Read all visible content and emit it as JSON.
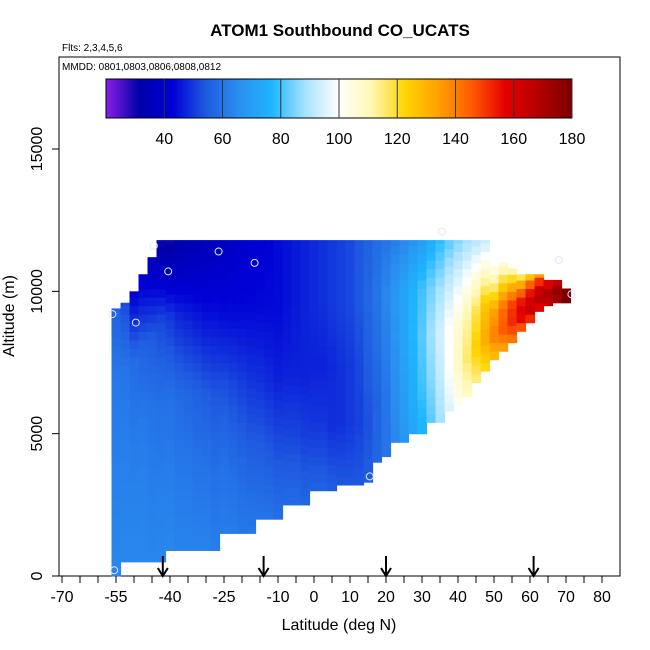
{
  "chart_data": {
    "type": "heatmap",
    "title": "ATOM1 Southbound CO_UCATS",
    "flights_note": "Flts: 2,3,4,5,6",
    "dates_note": "MMDD: 0801,0803,0806,0808,0812",
    "xlabel": "Latitude (deg N)",
    "ylabel": "Altitude (m)",
    "xlim": [
      -70,
      80
    ],
    "ylim": [
      0,
      17000
    ],
    "x_ticks": [
      -70,
      -55,
      -40,
      -25,
      -10,
      0,
      10,
      20,
      30,
      40,
      50,
      60,
      70,
      80
    ],
    "x_tick_labels": [
      "-70",
      "-55",
      "-40",
      "-25",
      "-10",
      "0",
      "10",
      "20",
      "30",
      "40",
      "50",
      "60",
      "70",
      "80"
    ],
    "y_ticks": [
      0,
      5000,
      10000,
      15000
    ],
    "y_tick_labels": [
      "0",
      "5000",
      "10000",
      "15000"
    ],
    "colorbar": {
      "range": [
        20,
        180
      ],
      "ticks": [
        40,
        60,
        80,
        100,
        120,
        140,
        160,
        180
      ],
      "tick_labels": [
        "40",
        "60",
        "80",
        "100",
        "120",
        "140",
        "160",
        "180"
      ],
      "colors": [
        "#8a1fe8",
        "#0000a8",
        "#0000d6",
        "#1f5ae0",
        "#2a8ff0",
        "#1fb6ff",
        "#a9e3ff",
        "#ffffff",
        "#fff7b0",
        "#ffd400",
        "#ffa000",
        "#ff5a00",
        "#e40000",
        "#b40000",
        "#7a0000"
      ]
    },
    "cell_width_deg": 2.5,
    "columns": [
      {
        "x": -55.0,
        "bottom": 0,
        "top": 9400,
        "v": [
          64,
          63,
          62,
          61,
          56
        ]
      },
      {
        "x": -52.5,
        "bottom": 500,
        "top": 9600,
        "v": [
          64,
          63,
          62,
          60,
          52
        ]
      },
      {
        "x": -50.0,
        "bottom": 500,
        "top": 10000,
        "v": [
          64,
          63,
          61,
          58,
          42
        ]
      },
      {
        "x": -47.5,
        "bottom": 500,
        "top": 10600,
        "v": [
          64,
          63,
          61,
          56,
          40
        ]
      },
      {
        "x": -45.0,
        "bottom": 500,
        "top": 11200,
        "v": [
          64,
          62,
          60,
          54,
          36
        ]
      },
      {
        "x": -42.5,
        "bottom": 500,
        "top": 11800,
        "v": [
          64,
          62,
          59,
          52,
          30
        ]
      },
      {
        "x": -40.0,
        "bottom": 900,
        "top": 11800,
        "v": [
          64,
          62,
          59,
          50,
          30
        ]
      },
      {
        "x": -37.5,
        "bottom": 900,
        "top": 11800,
        "v": [
          63,
          61,
          58,
          48,
          32
        ]
      },
      {
        "x": -35.0,
        "bottom": 900,
        "top": 11800,
        "v": [
          63,
          61,
          57,
          47,
          34
        ]
      },
      {
        "x": -32.5,
        "bottom": 900,
        "top": 11800,
        "v": [
          63,
          60,
          56,
          46,
          35
        ]
      },
      {
        "x": -30.0,
        "bottom": 900,
        "top": 11800,
        "v": [
          63,
          60,
          55,
          45,
          36
        ]
      },
      {
        "x": -27.5,
        "bottom": 900,
        "top": 11800,
        "v": [
          62,
          59,
          54,
          45,
          37
        ]
      },
      {
        "x": -25.0,
        "bottom": 1500,
        "top": 11800,
        "v": [
          62,
          59,
          53,
          44,
          38
        ]
      },
      {
        "x": -22.5,
        "bottom": 1500,
        "top": 11800,
        "v": [
          62,
          58,
          52,
          44,
          39
        ]
      },
      {
        "x": -20.0,
        "bottom": 1500,
        "top": 11800,
        "v": [
          61,
          57,
          51,
          44,
          40
        ]
      },
      {
        "x": -17.5,
        "bottom": 1500,
        "top": 11800,
        "v": [
          61,
          56,
          50,
          44,
          41
        ]
      },
      {
        "x": -15.0,
        "bottom": 2000,
        "top": 11800,
        "v": [
          60,
          55,
          49,
          44,
          42
        ]
      },
      {
        "x": -12.5,
        "bottom": 2000,
        "top": 11800,
        "v": [
          60,
          54,
          48,
          44,
          43
        ]
      },
      {
        "x": -10.0,
        "bottom": 2000,
        "top": 11800,
        "v": [
          59,
          53,
          47,
          44,
          44
        ]
      },
      {
        "x": -7.5,
        "bottom": 2500,
        "top": 11800,
        "v": [
          58,
          52,
          47,
          45,
          45
        ]
      },
      {
        "x": -5.0,
        "bottom": 2500,
        "top": 11800,
        "v": [
          58,
          52,
          47,
          46,
          46
        ]
      },
      {
        "x": -2.5,
        "bottom": 2500,
        "top": 11800,
        "v": [
          57,
          51,
          47,
          47,
          47
        ]
      },
      {
        "x": 0.0,
        "bottom": 3000,
        "top": 11800,
        "v": [
          56,
          50,
          47,
          48,
          48
        ]
      },
      {
        "x": 2.5,
        "bottom": 3000,
        "top": 11800,
        "v": [
          56,
          50,
          47,
          49,
          49
        ]
      },
      {
        "x": 5.0,
        "bottom": 3000,
        "top": 11800,
        "v": [
          55,
          49,
          48,
          50,
          50
        ]
      },
      {
        "x": 7.5,
        "bottom": 3200,
        "top": 11800,
        "v": [
          54,
          49,
          49,
          51,
          51
        ]
      },
      {
        "x": 10.0,
        "bottom": 3200,
        "top": 11800,
        "v": [
          54,
          50,
          50,
          52,
          52
        ]
      },
      {
        "x": 12.5,
        "bottom": 3200,
        "top": 11800,
        "v": [
          54,
          51,
          52,
          54,
          54
        ]
      },
      {
        "x": 15.0,
        "bottom": 3300,
        "top": 11800,
        "v": [
          55,
          53,
          55,
          57,
          56
        ]
      },
      {
        "x": 17.5,
        "bottom": 4000,
        "top": 11800,
        "v": [
          57,
          56,
          58,
          60,
          58
        ]
      },
      {
        "x": 20.0,
        "bottom": 4200,
        "top": 11800,
        "v": [
          60,
          60,
          62,
          64,
          60
        ]
      },
      {
        "x": 22.5,
        "bottom": 4700,
        "top": 11800,
        "v": [
          64,
          65,
          67,
          68,
          62
        ]
      },
      {
        "x": 25.0,
        "bottom": 4700,
        "top": 11800,
        "v": [
          68,
          70,
          72,
          72,
          64
        ]
      },
      {
        "x": 27.5,
        "bottom": 5000,
        "top": 11800,
        "v": [
          72,
          75,
          77,
          76,
          67
        ]
      },
      {
        "x": 30.0,
        "bottom": 5000,
        "top": 11800,
        "v": [
          76,
          80,
          82,
          80,
          70
        ]
      },
      {
        "x": 32.5,
        "bottom": 5400,
        "top": 11800,
        "v": [
          82,
          86,
          88,
          84,
          74
        ]
      },
      {
        "x": 35.0,
        "bottom": 5400,
        "top": 11800,
        "v": [
          88,
          92,
          94,
          88,
          78
        ]
      },
      {
        "x": 37.5,
        "bottom": 5800,
        "top": 11800,
        "v": [
          95,
          100,
          100,
          92,
          82
        ]
      },
      {
        "x": 40.0,
        "bottom": 6000,
        "top": 11800,
        "v": [
          102,
          108,
          106,
          96,
          85
        ]
      },
      {
        "x": 42.5,
        "bottom": 6300,
        "top": 11800,
        "v": [
          108,
          116,
          112,
          100,
          88
        ]
      },
      {
        "x": 45.0,
        "bottom": 6800,
        "top": 11800,
        "v": [
          114,
          124,
          118,
          104,
          90
        ]
      },
      {
        "x": 47.5,
        "bottom": 7200,
        "top": 11800,
        "v": [
          120,
          132,
          126,
          108,
          92
        ]
      },
      {
        "x": 50.0,
        "bottom": 7600,
        "top": 11000,
        "v": [
          126,
          140,
          134,
          116,
          100
        ]
      },
      {
        "x": 52.5,
        "bottom": 7900,
        "top": 11000,
        "v": [
          132,
          146,
          142,
          124,
          104
        ]
      },
      {
        "x": 55.0,
        "bottom": 8200,
        "top": 10800,
        "v": [
          138,
          152,
          150,
          132,
          108
        ]
      },
      {
        "x": 57.5,
        "bottom": 8600,
        "top": 10600,
        "v": [
          142,
          158,
          156,
          140,
          112
        ]
      },
      {
        "x": 60.0,
        "bottom": 8900,
        "top": 10600,
        "v": [
          146,
          164,
          160,
          150,
          120
        ]
      },
      {
        "x": 62.5,
        "bottom": 9300,
        "top": 10600,
        "v": [
          150,
          168,
          166,
          158,
          130
        ]
      },
      {
        "x": 65.0,
        "bottom": 9500,
        "top": 10400,
        "v": [
          155,
          172,
          170,
          166,
          145
        ]
      },
      {
        "x": 67.5,
        "bottom": 9600,
        "top": 10400,
        "v": [
          160,
          176,
          176,
          172,
          160
        ]
      },
      {
        "x": 70.0,
        "bottom": 9600,
        "top": 10100,
        "v": [
          170,
          180,
          180,
          180,
          175
        ]
      }
    ],
    "sample_points": [
      {
        "lat": -56.0,
        "alt": 9200
      },
      {
        "lat": -49.5,
        "alt": 8900
      },
      {
        "lat": -44.5,
        "alt": 11600
      },
      {
        "lat": -40.5,
        "alt": 10700
      },
      {
        "lat": -26.5,
        "alt": 11400
      },
      {
        "lat": -16.5,
        "alt": 11000
      },
      {
        "lat": 15.5,
        "alt": 3500
      },
      {
        "lat": 35.5,
        "alt": 12100
      },
      {
        "lat": 68.0,
        "alt": 11100
      },
      {
        "lat": 71.5,
        "alt": 9900
      },
      {
        "lat": -55.5,
        "alt": 200
      }
    ],
    "arrow_latitudes": [
      -42.0,
      -14.0,
      20.0,
      61.0
    ]
  }
}
